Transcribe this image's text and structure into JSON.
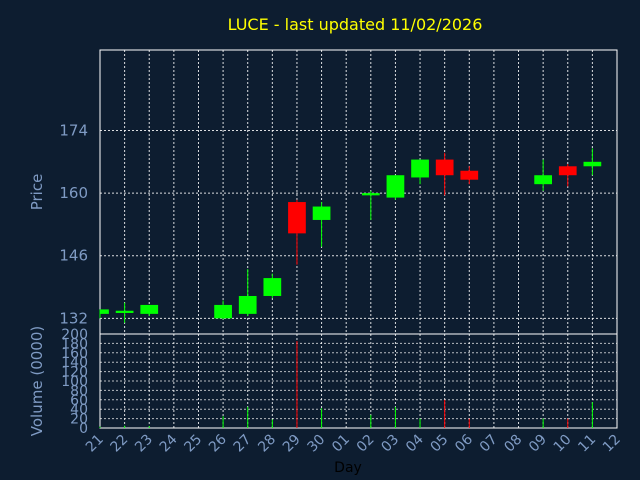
{
  "chart_data": {
    "type": "candlestick",
    "title": "LUCE - last updated 11/02/2026",
    "xlabel": "Day",
    "ylabel_price": "Price",
    "ylabel_volume": "Volume (0000)",
    "x_tick_labels": [
      "21",
      "22",
      "23",
      "24",
      "25",
      "26",
      "27",
      "28",
      "29",
      "30",
      "01",
      "02",
      "03",
      "04",
      "05",
      "06",
      "07",
      "08",
      "09",
      "10",
      "11",
      "12"
    ],
    "price_axis": {
      "ticks": [
        132,
        146,
        160,
        174
      ],
      "ylim": [
        128.5,
        192
      ]
    },
    "volume_axis": {
      "ticks": [
        0,
        20,
        40,
        60,
        80,
        100,
        120,
        140,
        160,
        180,
        200
      ],
      "ylim": [
        0,
        200
      ]
    },
    "colors": {
      "up": "#00ff00",
      "down": "#ff0000",
      "grid": "#ffffff",
      "axis": "#ffffff",
      "title": "#ffff00",
      "label": "#7f9bc4",
      "background": "#0d1d30"
    },
    "candles": [
      {
        "day": "21",
        "open": 133.0,
        "high": 134.0,
        "low": 132.0,
        "close": 134.0,
        "volume": 3
      },
      {
        "day": "22",
        "open": 133.2,
        "high": 135.5,
        "low": 131.0,
        "close": 133.7,
        "volume": 5
      },
      {
        "day": "23",
        "open": 133.0,
        "high": 135.0,
        "low": 132.5,
        "close": 135.0,
        "volume": 4
      },
      {
        "day": "26",
        "open": 132.0,
        "high": 136.0,
        "low": 131.8,
        "close": 135.0,
        "volume": 25
      },
      {
        "day": "27",
        "open": 133.0,
        "high": 143.0,
        "low": 132.5,
        "close": 137.0,
        "volume": 45
      },
      {
        "day": "28",
        "open": 137.0,
        "high": 142.0,
        "low": 136.5,
        "close": 141.0,
        "volume": 18
      },
      {
        "day": "29",
        "open": 158.0,
        "high": 158.5,
        "low": 144.0,
        "close": 151.0,
        "volume": 185
      },
      {
        "day": "30",
        "open": 154.0,
        "high": 158.0,
        "low": 148.0,
        "close": 157.0,
        "volume": 42
      },
      {
        "day": "02",
        "open": 159.5,
        "high": 160.5,
        "low": 154.0,
        "close": 160.0,
        "volume": 28
      },
      {
        "day": "03",
        "open": 159.0,
        "high": 164.0,
        "low": 158.5,
        "close": 164.0,
        "volume": 45
      },
      {
        "day": "04",
        "open": 163.5,
        "high": 167.5,
        "low": 162.0,
        "close": 167.5,
        "volume": 20
      },
      {
        "day": "05",
        "open": 167.5,
        "high": 169.0,
        "low": 159.5,
        "close": 164.0,
        "volume": 60
      },
      {
        "day": "06",
        "open": 165.0,
        "high": 166.0,
        "low": 162.0,
        "close": 163.0,
        "volume": 20
      },
      {
        "day": "09",
        "open": 162.0,
        "high": 167.5,
        "low": 160.5,
        "close": 164.0,
        "volume": 20
      },
      {
        "day": "10",
        "open": 166.0,
        "high": 166.5,
        "low": 161.5,
        "close": 164.0,
        "volume": 20
      },
      {
        "day": "11",
        "open": 166.0,
        "high": 170.0,
        "low": 164.0,
        "close": 167.0,
        "volume": 55
      }
    ]
  }
}
